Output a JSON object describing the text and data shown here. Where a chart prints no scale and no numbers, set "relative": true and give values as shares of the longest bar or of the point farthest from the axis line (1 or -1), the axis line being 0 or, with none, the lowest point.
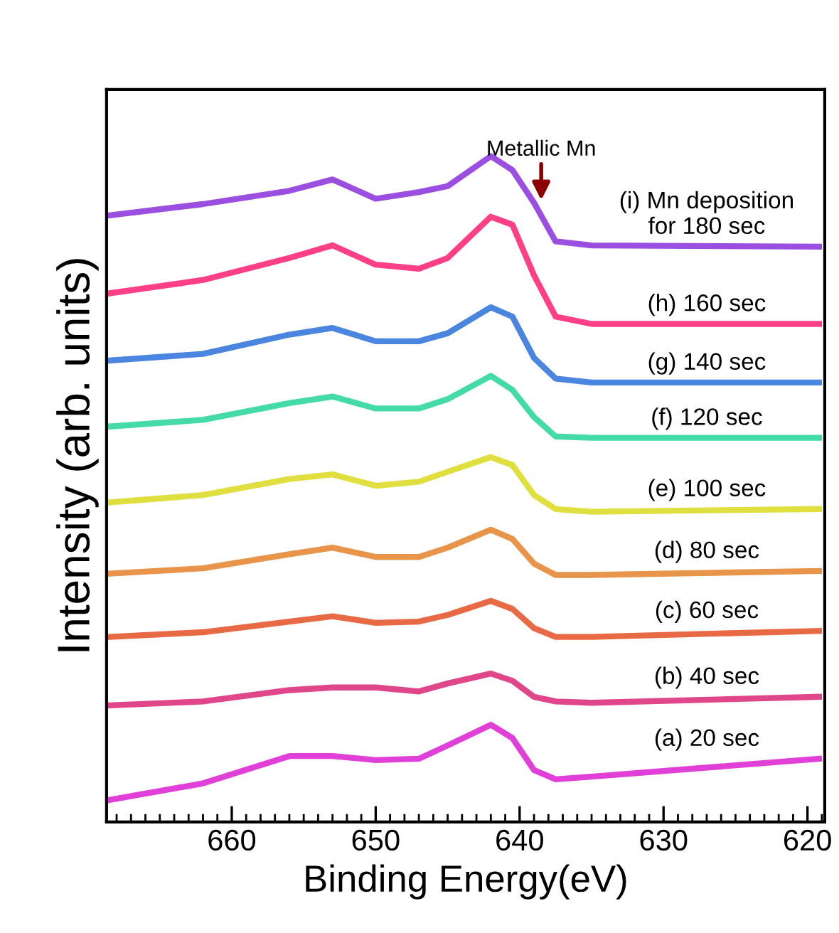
{
  "chart_data": {
    "type": "line",
    "relative": true,
    "xlabel": "Binding Energy(eV)",
    "ylabel": "Intensity (arb. units)",
    "xlim": [
      668.7,
      618.8
    ],
    "xticks": [
      660,
      650,
      640,
      630,
      620
    ],
    "grid": false,
    "legend": false,
    "marker": "none",
    "line_style": "solid",
    "tick_labels": "x",
    "x": [
      668.5,
      662,
      656,
      653,
      650,
      647,
      645,
      642,
      640.5,
      639,
      637.5,
      635,
      619.2
    ],
    "annotations": [
      {
        "text": "Metallic Mn",
        "x": 638.5,
        "y": 0.934
      }
    ],
    "series": [
      {
        "name": "(i) Mn deposition\nfor 180 sec",
        "color": "#9b4fe0",
        "values": [
          0.911,
          0.928,
          0.948,
          0.965,
          0.936,
          0.946,
          0.955,
          1.0,
          0.979,
          0.93,
          0.872,
          0.866,
          0.864
        ]
      },
      {
        "name": "(h) 160 sec",
        "color": "#ff3f86",
        "values": [
          0.794,
          0.814,
          0.847,
          0.866,
          0.837,
          0.831,
          0.847,
          0.909,
          0.897,
          0.821,
          0.759,
          0.748,
          0.748
        ]
      },
      {
        "name": "(g) 140 sec",
        "color": "#4a86e0",
        "values": [
          0.693,
          0.703,
          0.732,
          0.742,
          0.722,
          0.722,
          0.734,
          0.773,
          0.759,
          0.697,
          0.666,
          0.66,
          0.66
        ]
      },
      {
        "name": "(f) 120 sec",
        "color": "#45dba8",
        "values": [
          0.594,
          0.604,
          0.629,
          0.639,
          0.621,
          0.621,
          0.635,
          0.67,
          0.649,
          0.608,
          0.579,
          0.577,
          0.577
        ]
      },
      {
        "name": "(e) 100 sec",
        "color": "#dfe03f",
        "values": [
          0.48,
          0.491,
          0.515,
          0.522,
          0.505,
          0.511,
          0.526,
          0.548,
          0.536,
          0.491,
          0.47,
          0.466,
          0.47
        ]
      },
      {
        "name": "(d) 80 sec",
        "color": "#e8944a",
        "values": [
          0.373,
          0.381,
          0.402,
          0.412,
          0.398,
          0.398,
          0.412,
          0.439,
          0.425,
          0.388,
          0.371,
          0.371,
          0.377
        ]
      },
      {
        "name": "(c) 60 sec",
        "color": "#e86a45",
        "values": [
          0.278,
          0.285,
          0.301,
          0.309,
          0.299,
          0.301,
          0.311,
          0.332,
          0.32,
          0.291,
          0.278,
          0.278,
          0.287
        ]
      },
      {
        "name": "(b) 40 sec",
        "color": "#e0478a",
        "values": [
          0.175,
          0.181,
          0.198,
          0.202,
          0.202,
          0.196,
          0.208,
          0.223,
          0.212,
          0.188,
          0.181,
          0.179,
          0.188
        ]
      },
      {
        "name": "(a) 20 sec",
        "color": "#e040d8",
        "values": [
          0.033,
          0.058,
          0.099,
          0.099,
          0.093,
          0.095,
          0.115,
          0.146,
          0.126,
          0.078,
          0.064,
          0.068,
          0.095
        ]
      }
    ]
  }
}
